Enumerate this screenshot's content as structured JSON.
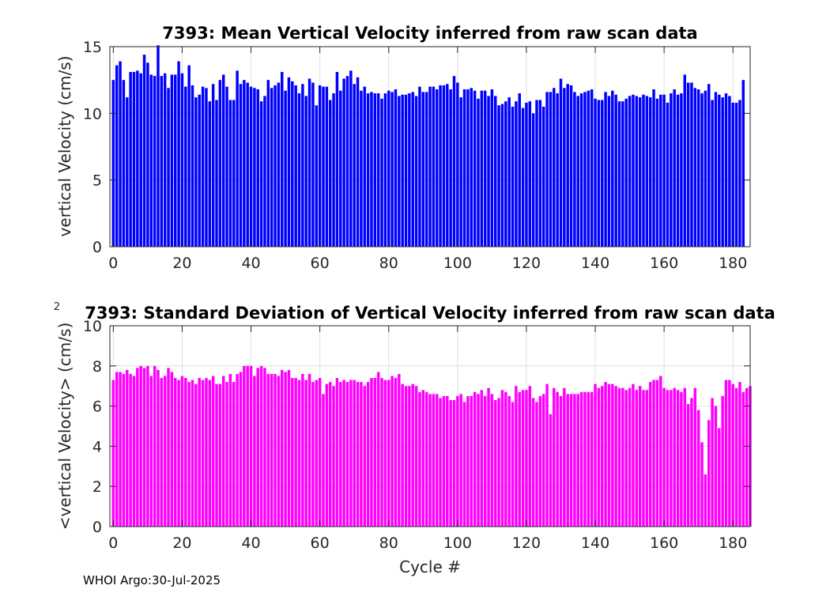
{
  "footer": "WHOI Argo:30-Jul-2025",
  "chart_data": [
    {
      "type": "bar",
      "title": "7393: Mean Vertical Velocity inferred from raw scan data",
      "xlabel": "",
      "ylabel": "vertical Velocity (cm/s)",
      "xlim": [
        -1,
        185
      ],
      "ylim": [
        0,
        15
      ],
      "xticks": [
        0,
        20,
        40,
        60,
        80,
        100,
        120,
        140,
        160,
        180
      ],
      "yticks": [
        0,
        5,
        10,
        15
      ],
      "grid": true,
      "color": "#0000ff",
      "x_start": 0,
      "values": [
        12.5,
        13.6,
        13.9,
        12.5,
        11.2,
        13.1,
        13.1,
        13.2,
        13.0,
        14.4,
        13.8,
        12.9,
        12.8,
        15.1,
        12.8,
        13.0,
        11.9,
        12.9,
        12.9,
        13.9,
        13.0,
        12.0,
        13.6,
        12.1,
        11.2,
        11.4,
        12.0,
        11.9,
        10.9,
        12.2,
        11.0,
        12.5,
        12.9,
        12.0,
        11.0,
        11.0,
        13.2,
        12.2,
        12.5,
        12.3,
        12.0,
        11.9,
        11.8,
        10.9,
        11.3,
        12.5,
        11.9,
        12.1,
        12.3,
        13.1,
        11.7,
        12.7,
        12.4,
        12.1,
        11.5,
        12.2,
        11.3,
        12.6,
        12.3,
        10.6,
        12.1,
        12.0,
        12.0,
        11.0,
        11.5,
        13.1,
        11.7,
        12.6,
        12.8,
        13.2,
        12.2,
        12.7,
        11.7,
        12.0,
        11.5,
        11.6,
        11.5,
        11.5,
        11.1,
        11.5,
        11.7,
        11.6,
        11.8,
        11.3,
        11.4,
        11.4,
        11.5,
        11.6,
        11.3,
        12.0,
        11.6,
        11.6,
        12.0,
        12.0,
        11.8,
        12.1,
        12.1,
        12.2,
        11.8,
        12.8,
        12.3,
        11.2,
        11.8,
        11.8,
        11.9,
        11.7,
        11.1,
        11.7,
        11.7,
        11.3,
        11.8,
        11.3,
        10.6,
        10.7,
        10.9,
        11.2,
        10.5,
        10.9,
        11.5,
        10.4,
        10.8,
        10.9,
        10.0,
        11.0,
        11.0,
        10.5,
        11.6,
        11.6,
        11.9,
        11.5,
        12.6,
        11.9,
        12.2,
        12.1,
        11.6,
        11.3,
        11.5,
        11.6,
        11.7,
        11.8,
        11.1,
        11.0,
        11.0,
        11.6,
        11.3,
        11.7,
        11.4,
        10.9,
        10.9,
        11.1,
        11.3,
        11.4,
        11.3,
        11.2,
        11.4,
        11.3,
        11.2,
        11.8,
        11.1,
        11.4,
        11.4,
        10.8,
        11.5,
        11.8,
        11.4,
        11.5,
        12.9,
        12.3,
        12.3,
        11.9,
        11.8,
        11.5,
        11.7,
        12.2,
        11.0,
        11.6,
        11.4,
        11.2,
        11.5,
        11.3,
        10.8,
        10.8,
        11.0,
        12.5
      ]
    },
    {
      "type": "bar",
      "title": "7393: Standard Deviation of Vertical Velocity inferred from raw scan data",
      "xlabel": "Cycle #",
      "ylabel": "<vertical Velocity> (cm/s)",
      "ylabel_exponent": "2",
      "xlim": [
        -1,
        185
      ],
      "ylim": [
        0,
        10
      ],
      "xticks": [
        0,
        20,
        40,
        60,
        80,
        100,
        120,
        140,
        160,
        180
      ],
      "yticks": [
        0,
        2,
        4,
        6,
        8,
        10
      ],
      "grid": true,
      "color": "#ff00ff",
      "x_start": 0,
      "values": [
        7.3,
        7.7,
        7.7,
        7.6,
        7.8,
        7.6,
        7.5,
        7.9,
        8.0,
        7.9,
        8.0,
        7.5,
        8.0,
        7.8,
        7.4,
        7.5,
        7.9,
        7.7,
        7.4,
        7.3,
        7.5,
        7.4,
        7.2,
        7.3,
        7.1,
        7.4,
        7.3,
        7.4,
        7.3,
        7.5,
        7.1,
        7.1,
        7.5,
        7.2,
        7.6,
        7.2,
        7.6,
        7.7,
        8.0,
        8.0,
        8.0,
        7.5,
        7.9,
        8.0,
        7.9,
        7.6,
        7.6,
        7.6,
        7.5,
        7.8,
        7.7,
        7.8,
        7.4,
        7.4,
        7.3,
        7.6,
        7.3,
        7.6,
        7.2,
        7.3,
        7.4,
        6.6,
        7.1,
        7.2,
        7.0,
        7.4,
        7.2,
        7.3,
        7.2,
        7.3,
        7.3,
        7.2,
        7.2,
        7.0,
        7.2,
        7.4,
        7.4,
        7.7,
        7.4,
        7.3,
        7.3,
        7.5,
        7.4,
        7.6,
        7.1,
        7.0,
        7.0,
        7.1,
        7.0,
        6.7,
        6.8,
        6.7,
        6.6,
        6.6,
        6.6,
        6.4,
        6.5,
        6.5,
        6.3,
        6.3,
        6.5,
        6.6,
        6.2,
        6.5,
        6.5,
        6.7,
        6.6,
        6.8,
        6.5,
        6.9,
        6.6,
        6.3,
        6.4,
        6.8,
        6.7,
        6.5,
        6.2,
        7.0,
        6.7,
        6.8,
        6.8,
        7.0,
        6.4,
        6.2,
        6.5,
        6.6,
        7.1,
        5.6,
        6.9,
        6.7,
        6.5,
        6.9,
        6.6,
        6.6,
        6.6,
        6.6,
        6.7,
        6.7,
        6.7,
        6.7,
        7.1,
        6.9,
        7.0,
        7.2,
        7.1,
        7.1,
        7.0,
        6.9,
        6.9,
        6.8,
        6.9,
        7.1,
        6.8,
        7.0,
        6.8,
        6.8,
        7.2,
        7.3,
        7.3,
        7.5,
        6.9,
        6.8,
        6.8,
        6.9,
        6.8,
        6.7,
        6.9,
        6.1,
        6.4,
        6.9,
        5.8,
        4.2,
        2.6,
        5.3,
        6.4,
        6.0,
        4.9,
        6.5,
        7.3,
        7.3,
        7.1,
        6.9,
        7.2,
        6.7,
        6.9,
        7.0
      ]
    }
  ]
}
